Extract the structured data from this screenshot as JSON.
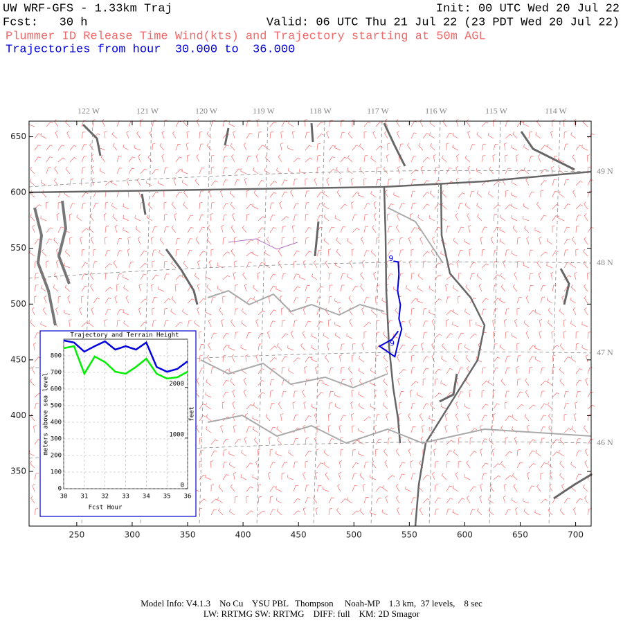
{
  "header": {
    "title": "UW WRF-GFS - 1.33km Traj",
    "init": "Init: 00 UTC Wed 20 Jul 22",
    "fcst": "Fcst:   30 h",
    "valid": "Valid: 06 UTC Thu 21 Jul 22 (23 PDT Wed 20 Jul 22)",
    "subtitle": "Plummer ID Release Time Wind(kts) and Trajectory starting at 50m AGL",
    "traj_range": "Trajectories from hour  30.000 to  36.000"
  },
  "chart_data": [
    {
      "type": "trajectory",
      "xlim": [
        207,
        714
      ],
      "ylim": [
        301,
        664
      ],
      "xticks": [
        250,
        300,
        350,
        400,
        450,
        500,
        550,
        600,
        650,
        700
      ],
      "yticks": [
        350,
        400,
        450,
        500,
        550,
        600,
        650
      ],
      "lon_labels": [
        "122 W",
        "121 W",
        "120 W",
        "119 W",
        "118 W",
        "117 W",
        "116 W",
        "115 W",
        "114 W"
      ],
      "lat_labels": [
        "49 N",
        "48 N",
        "47 N",
        "46 N"
      ],
      "color": "#0000dd",
      "x": [
        535.6,
        540.0,
        540.6,
        539.4,
        541.9,
        540.6,
        543.1,
        540.6,
        536.9,
        523.1,
        534.4,
        540.0
      ],
      "y": [
        538.4,
        537.8,
        527.2,
        511.7,
        499.3,
        486.9,
        477.6,
        468.4,
        452.9,
        462.2,
        468.4,
        475.8
      ],
      "annotations": [
        {
          "text": "9",
          "x": 533.5,
          "y": 540.5
        },
        {
          "text": "9",
          "x": 534.5,
          "y": 464.5
        }
      ]
    },
    {
      "type": "line",
      "title": "Trajectory and Terrain Height",
      "xlabel": "Fcst Hour",
      "ylabel": "meters above sea level",
      "y2label": "feet",
      "x": [
        30,
        30.5,
        31,
        31.5,
        32,
        32.5,
        33,
        33.5,
        34,
        34.5,
        35,
        35.5,
        36
      ],
      "xlim": [
        30,
        36
      ],
      "xticks": [
        30,
        31,
        32,
        33,
        34,
        35,
        36
      ],
      "ylim": [
        0,
        900
      ],
      "yticks": [
        0,
        100,
        200,
        300,
        400,
        500,
        600,
        700,
        800
      ],
      "y2lim": [
        0,
        2953
      ],
      "y2ticks": [
        0,
        1000,
        2000
      ],
      "grid": true,
      "series": [
        {
          "color": "#0000dd",
          "values": [
            892,
            880,
            825,
            858,
            887,
            837,
            858,
            837,
            880,
            733,
            704,
            721,
            767
          ]
        },
        {
          "color": "#00ee00",
          "values": [
            846,
            858,
            692,
            796,
            762,
            704,
            692,
            733,
            783,
            692,
            663,
            671,
            704
          ]
        }
      ]
    }
  ],
  "footer": {
    "line1": "Model Info: V4.1.3    No Cu    YSU PBL   Thompson     Noah-MP    1.3 km,  37 levels,    8 sec",
    "line2": "LW: RRTMG SW: RRTMG    DIFF: full    KM: 2D Smagor"
  }
}
